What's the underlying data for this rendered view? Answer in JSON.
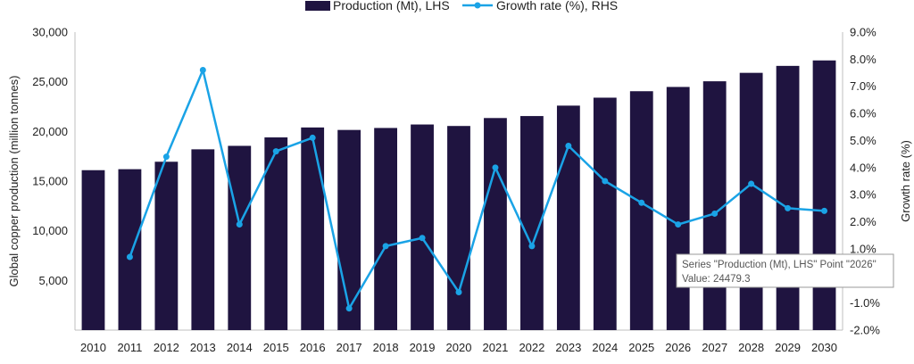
{
  "chart_data": {
    "type": "bar",
    "categories": [
      "2010",
      "2011",
      "2012",
      "2013",
      "2014",
      "2015",
      "2016",
      "2017",
      "2018",
      "2019",
      "2020",
      "2021",
      "2022",
      "2023",
      "2024",
      "2025",
      "2026",
      "2027",
      "2028",
      "2029",
      "2030"
    ],
    "series": [
      {
        "name": "Production (Mt), LHS",
        "type": "bar",
        "axis": "left",
        "color": "#1f1440",
        "values": [
          16100,
          16200,
          16950,
          18200,
          18550,
          19400,
          20400,
          20150,
          20350,
          20700,
          20550,
          21350,
          21550,
          22600,
          23400,
          24050,
          24479.3,
          25050,
          25900,
          26600,
          27150
        ]
      },
      {
        "name": "Growth rate (%), RHS",
        "type": "line",
        "axis": "right",
        "color": "#1aa3e6",
        "values": [
          null,
          0.7,
          4.4,
          7.6,
          1.9,
          4.6,
          5.1,
          -1.2,
          1.1,
          1.4,
          -0.6,
          4.0,
          1.1,
          4.8,
          3.5,
          2.7,
          1.9,
          2.3,
          3.4,
          2.5,
          2.4
        ]
      }
    ],
    "title": "",
    "xlabel": "",
    "ylabel": "Global copper production (million tonnes)",
    "y2label": "Growth rate (%)",
    "ylim": [
      0,
      30000
    ],
    "y2lim": [
      -2,
      9
    ],
    "yticks": [
      "5,000",
      "10,000",
      "15,000",
      "20,000",
      "25,000",
      "30,000"
    ],
    "y2ticks": [
      "-2.0%",
      "-1.0%",
      "0.0%",
      "1.0%",
      "2.0%",
      "3.0%",
      "4.0%",
      "5.0%",
      "6.0%",
      "7.0%",
      "8.0%",
      "9.0%"
    ],
    "legend_position": "top-center",
    "grid": false,
    "tooltip": {
      "line1": "Series \"Production (Mt), LHS\" Point \"2026\"",
      "line2": "Value: 24479.3"
    }
  }
}
